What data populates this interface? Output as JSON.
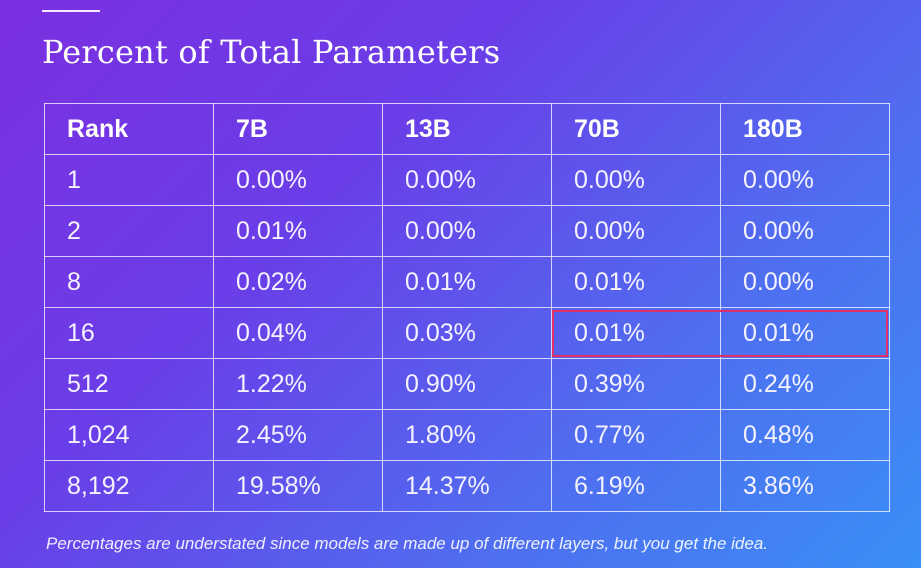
{
  "title": "Percent of Total Parameters",
  "table": {
    "headers": [
      "Rank",
      "7B",
      "13B",
      "70B",
      "180B"
    ],
    "rows": [
      [
        "1",
        "0.00%",
        "0.00%",
        "0.00%",
        "0.00%"
      ],
      [
        "2",
        "0.01%",
        "0.00%",
        "0.00%",
        "0.00%"
      ],
      [
        "8",
        "0.02%",
        "0.01%",
        "0.01%",
        "0.00%"
      ],
      [
        "16",
        "0.04%",
        "0.03%",
        "0.01%",
        "0.01%"
      ],
      [
        "512",
        "1.22%",
        "0.90%",
        "0.39%",
        "0.24%"
      ],
      [
        "1,024",
        "2.45%",
        "1.80%",
        "0.77%",
        "0.48%"
      ],
      [
        "8,192",
        "19.58%",
        "14.37%",
        "6.19%",
        "3.86%"
      ]
    ]
  },
  "highlight": {
    "row": "16",
    "columns": [
      "70B",
      "180B"
    ],
    "color": "#e0306a"
  },
  "footnote": "Percentages are understated since models are made up of different layers, but you get the idea.",
  "colors": {
    "background_start": "#7b2fe0",
    "background_end": "#3a8ff6",
    "text": "#ffffff",
    "grid": "#ffffff"
  }
}
